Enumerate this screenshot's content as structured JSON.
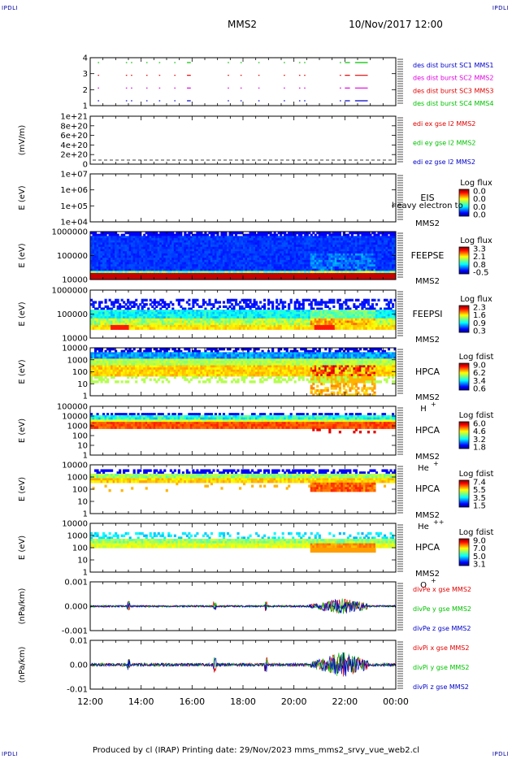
{
  "header": {
    "title": "MMS2",
    "datetime": "10/Nov/2017 12:00",
    "corner_logo": "IPDLI"
  },
  "footer": {
    "text": "Produced by cl (IRAP)   Printing date: 29/Nov/2023   mms_mms2_srvy_vue_web2.cl"
  },
  "chart_data": {
    "type": "multi-panel",
    "time_axis": {
      "ticks": [
        "12:00",
        "14:00",
        "16:00",
        "18:00",
        "20:00",
        "22:00",
        "00:00"
      ],
      "range_hours": [
        12,
        24
      ]
    },
    "panels": [
      {
        "id": "burst",
        "yticks": [
          "4",
          "3",
          "2",
          "1"
        ],
        "ylabel": "",
        "series": [
          {
            "name": "des dist burst SC1 MMS1",
            "color": "#0000c8",
            "level": 1
          },
          {
            "name": "des dist burst SC2 MMS2",
            "color": "#e000e0",
            "level": 2
          },
          {
            "name": "des dist burst SC3 MMS3",
            "color": "#e00000",
            "level": 3
          },
          {
            "name": "des dist burst SC4 MMS4",
            "color": "#00c000",
            "level": 4
          }
        ],
        "burst_intervals_hours": [
          [
            12.3,
            12.35
          ],
          [
            13.4,
            13.45
          ],
          [
            13.6,
            13.65
          ],
          [
            14.2,
            14.25
          ],
          [
            14.7,
            14.75
          ],
          [
            15.3,
            15.35
          ],
          [
            15.8,
            15.95
          ],
          [
            17.4,
            17.45
          ],
          [
            17.9,
            17.95
          ],
          [
            18.6,
            18.65
          ],
          [
            19.6,
            19.65
          ],
          [
            20.2,
            20.25
          ],
          [
            20.4,
            20.45
          ],
          [
            21.8,
            21.85
          ],
          [
            22.0,
            22.2
          ],
          [
            22.4,
            22.9
          ]
        ]
      },
      {
        "id": "edi",
        "ylabel": "(mV/m)",
        "yticks": [
          "1e+21",
          "8e+20",
          "6e+20",
          "4e+20",
          "2e+20",
          "0"
        ],
        "series": [
          {
            "name": "edi ex gse l2 MMS2",
            "color": "#e00000"
          },
          {
            "name": "edi ey gse l2 MMS2",
            "color": "#00c000"
          },
          {
            "name": "edi ez gse l2 MMS2",
            "color": "#0000c8"
          }
        ],
        "values": "flat at 0 (dashed line)"
      },
      {
        "id": "eis",
        "ylabel": "E (eV)",
        "yticks": [
          "1e+07",
          "1e+06",
          "1e+05",
          "1e+04"
        ],
        "instrument": "EIS",
        "overlay_text": "heavy electron to",
        "spacecraft": "MMS2",
        "colorbar": {
          "title": "Log flux",
          "ticks": [
            "0.0",
            "0.0",
            "0.0",
            "0.0"
          ]
        }
      },
      {
        "id": "feepse",
        "ylabel": "E (eV)",
        "yticks": [
          "1000000",
          "100000",
          "10000"
        ],
        "instrument": "FEEPSE",
        "spacecraft": "MMS2",
        "colorbar": {
          "title": "Log flux",
          "ticks": [
            "3.3",
            "2.1",
            "0.8",
            "-0.5"
          ]
        }
      },
      {
        "id": "feepsi",
        "ylabel": "E (eV)",
        "yticks": [
          "1000000",
          "100000",
          "10000"
        ],
        "instrument": "FEEPSI",
        "spacecraft": "MMS2",
        "colorbar": {
          "title": "Log flux",
          "ticks": [
            "2.3",
            "1.6",
            "0.9",
            "0.3"
          ]
        }
      },
      {
        "id": "hpca-h",
        "ylabel": "E (eV)",
        "yticks": [
          "10000",
          "1000",
          "100",
          "10",
          "1"
        ],
        "instrument": "HPCA",
        "spacecraft": "MMS2",
        "species": "H",
        "species_sup": "+",
        "colorbar": {
          "title": "Log fdist",
          "ticks": [
            "9.0",
            "6.2",
            "3.4",
            "0.6"
          ]
        }
      },
      {
        "id": "hpca-he",
        "ylabel": "E (eV)",
        "yticks": [
          "100000",
          "10000",
          "1000",
          "100",
          "10",
          "1"
        ],
        "instrument": "HPCA",
        "spacecraft": "MMS2",
        "species": "He",
        "species_sup": "+",
        "colorbar": {
          "title": "Log fdist",
          "ticks": [
            "6.0",
            "4.6",
            "3.2",
            "1.8"
          ]
        }
      },
      {
        "id": "hpca-hepp",
        "ylabel": "E (eV)",
        "yticks": [
          "10000",
          "1000",
          "100",
          "10",
          "1"
        ],
        "instrument": "HPCA",
        "spacecraft": "MMS2",
        "species": "He",
        "species_sup": "++",
        "colorbar": {
          "title": "Log fdist",
          "ticks": [
            "7.4",
            "5.5",
            "3.5",
            "1.5"
          ]
        }
      },
      {
        "id": "hpca-o",
        "ylabel": "E (eV)",
        "yticks": [
          "10000",
          "1000",
          "100",
          "10",
          "1"
        ],
        "instrument": "HPCA",
        "spacecraft": "MMS2",
        "species": "O",
        "species_sup": "+",
        "colorbar": {
          "title": "Log fdist",
          "ticks": [
            "9.0",
            "7.0",
            "5.0",
            "3.1"
          ]
        }
      },
      {
        "id": "divpe",
        "ylabel": "(nPa/km)",
        "yticks": [
          "0.001",
          "0.000",
          "-0.001"
        ],
        "series": [
          {
            "name": "divPe x gse MMS2",
            "color": "#e00000"
          },
          {
            "name": "divPe y gse MMS2",
            "color": "#00c000"
          },
          {
            "name": "divPe z gse MMS2",
            "color": "#0000c8"
          }
        ]
      },
      {
        "id": "divpi",
        "ylabel": "(nPa/km)",
        "yticks": [
          "0.01",
          "0.00",
          "-0.01"
        ],
        "series": [
          {
            "name": "divPi x gse MMS2",
            "color": "#e00000"
          },
          {
            "name": "divPi y gse MMS2",
            "color": "#00c000"
          },
          {
            "name": "divPi z gse MMS2",
            "color": "#0000c8"
          }
        ]
      }
    ]
  }
}
